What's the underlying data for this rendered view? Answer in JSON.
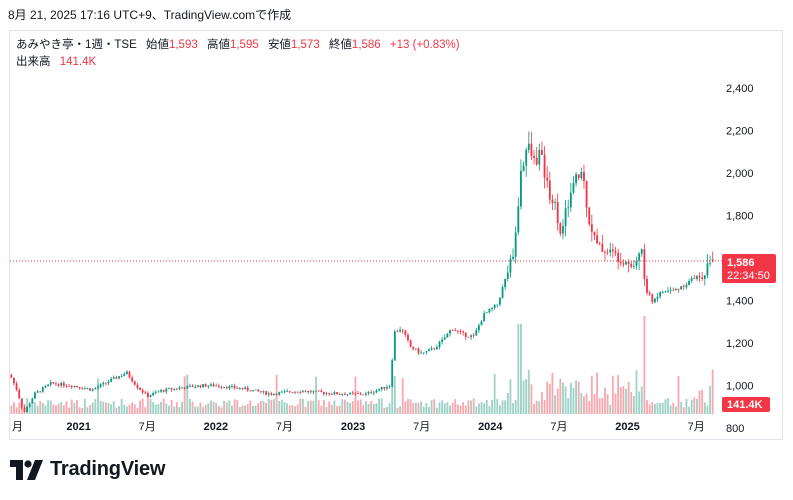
{
  "caption": "8月 21, 2025 17:16 UTC+9、TradingView.comで作成",
  "legend": {
    "symbol": "あみやき亭・1週・TSE",
    "open_label": "始値",
    "open": "1,593",
    "high_label": "高値",
    "high": "1,595",
    "low_label": "安値",
    "low": "1,573",
    "close_label": "終値",
    "close": "1,586",
    "change": "+13 (+0.83%)",
    "volume_label": "出来高",
    "volume": "141.4K"
  },
  "price_badge": {
    "price": "1,586",
    "countdown": "22:34:50"
  },
  "volume_badge": "141.4K",
  "brand": "TradingView",
  "colors": {
    "up": "#089981",
    "down": "#f23645",
    "up_vol": "#9fd2c6",
    "down_vol": "#f7a9b0"
  },
  "chart_data": {
    "type": "candlestick",
    "interval": "1 week",
    "y_ticks": [
      "2,400",
      "2,200",
      "2,000",
      "1,800",
      "1,400",
      "1,200",
      "1,000",
      "800"
    ],
    "ylim": [
      760,
      2440
    ],
    "x_ticks": [
      "月",
      "2021",
      "7月",
      "2022",
      "7月",
      "2023",
      "7月",
      "2024",
      "7月",
      "2025",
      "7月"
    ],
    "last_close": 1586,
    "last_volume": "141.4K",
    "price_path": [
      [
        2020.5,
        1050
      ],
      [
        2020.55,
        980
      ],
      [
        2020.6,
        870
      ],
      [
        2020.68,
        960
      ],
      [
        2020.8,
        1010
      ],
      [
        2020.95,
        1000
      ],
      [
        2021.1,
        980
      ],
      [
        2021.25,
        1030
      ],
      [
        2021.35,
        1060
      ],
      [
        2021.42,
        1000
      ],
      [
        2021.5,
        950
      ],
      [
        2021.6,
        975
      ],
      [
        2021.75,
        990
      ],
      [
        2021.9,
        1000
      ],
      [
        2022.0,
        1000
      ],
      [
        2022.2,
        985
      ],
      [
        2022.4,
        960
      ],
      [
        2022.6,
        975
      ],
      [
        2022.8,
        965
      ],
      [
        2022.95,
        960
      ],
      [
        2023.1,
        960
      ],
      [
        2023.2,
        985
      ],
      [
        2023.27,
        1000
      ],
      [
        2023.3,
        1250
      ],
      [
        2023.35,
        1270
      ],
      [
        2023.42,
        1180
      ],
      [
        2023.5,
        1150
      ],
      [
        2023.58,
        1170
      ],
      [
        2023.65,
        1210
      ],
      [
        2023.72,
        1270
      ],
      [
        2023.8,
        1240
      ],
      [
        2023.88,
        1230
      ],
      [
        2023.95,
        1330
      ],
      [
        2024.05,
        1380
      ],
      [
        2024.12,
        1520
      ],
      [
        2024.18,
        1660
      ],
      [
        2024.22,
        2000
      ],
      [
        2024.27,
        2130
      ],
      [
        2024.32,
        2050
      ],
      [
        2024.36,
        2100
      ],
      [
        2024.42,
        1930
      ],
      [
        2024.48,
        1830
      ],
      [
        2024.52,
        1700
      ],
      [
        2024.56,
        1850
      ],
      [
        2024.62,
        1960
      ],
      [
        2024.67,
        2010
      ],
      [
        2024.72,
        1780
      ],
      [
        2024.78,
        1650
      ],
      [
        2024.85,
        1640
      ],
      [
        2024.92,
        1610
      ],
      [
        2025.0,
        1590
      ],
      [
        2025.05,
        1560
      ],
      [
        2025.1,
        1660
      ],
      [
        2025.13,
        1450
      ],
      [
        2025.18,
        1400
      ],
      [
        2025.25,
        1440
      ],
      [
        2025.35,
        1450
      ],
      [
        2025.45,
        1490
      ],
      [
        2025.55,
        1530
      ],
      [
        2025.61,
        1586
      ]
    ]
  }
}
